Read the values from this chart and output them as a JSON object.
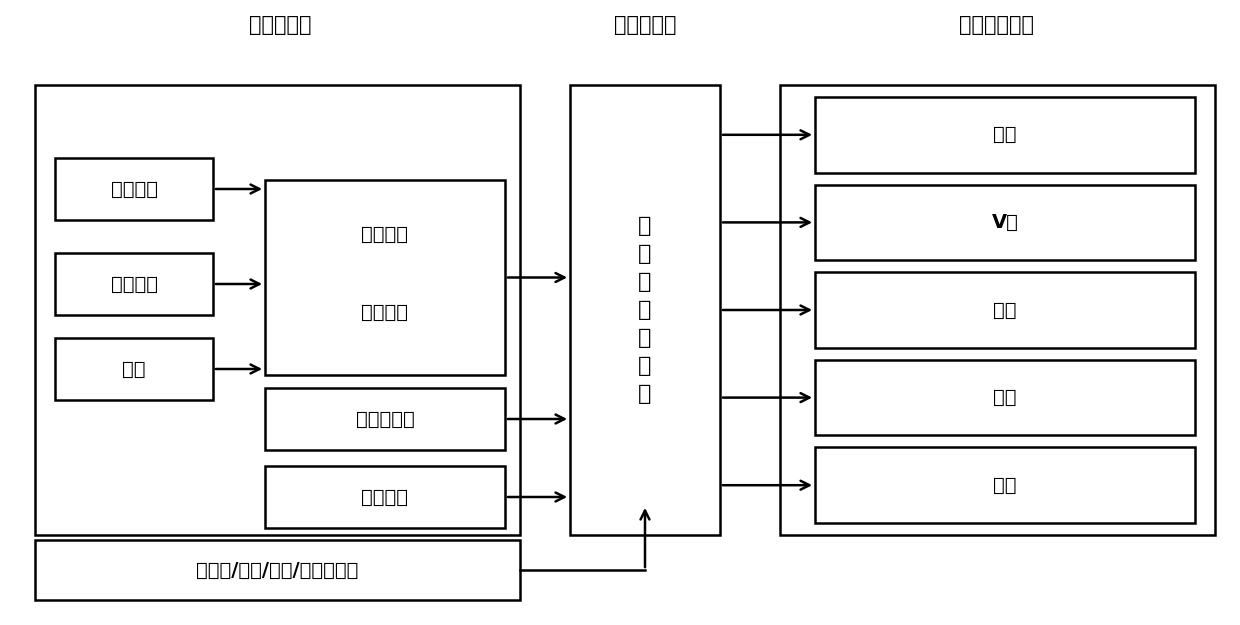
{
  "title_sensors": "飞行传感器",
  "title_controller": "飞行控制器",
  "title_actuators": "飞行执行机构",
  "box_left_labels": [
    "卫星导航",
    "大气数据",
    "风标"
  ],
  "box_mid_upper_line1": "惯性导航",
  "box_mid_upper_line2": "组合导航",
  "box_mid_lower_labels": [
    "雷达高度表",
    "触地开关"
  ],
  "box_bottom_label": "发动机/燃油/配电/起落架监控",
  "controller_label": "飞\n行\n控\n制\n计\n算\n机",
  "actuator_labels": [
    "副翼",
    "V尾",
    "刹车",
    "油门",
    "桨控"
  ],
  "bg_color": "#ffffff",
  "line_color": "#000000",
  "text_color": "#000000",
  "font_size_title": 15,
  "font_size_box": 14,
  "font_size_controller": 16,
  "lw": 1.8
}
